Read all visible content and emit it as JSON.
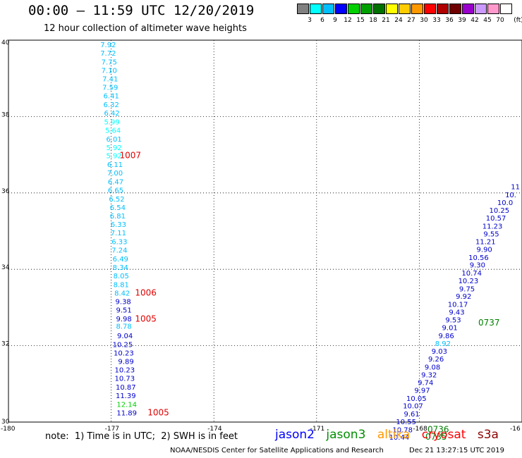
{
  "header": {
    "title": "00:00 – 11:59 UTC 12/20/2019",
    "subtitle": "12 hour collection of altimeter wave heights"
  },
  "colorbar": {
    "unit": "(ft)",
    "labels": [
      "3",
      "6",
      "9",
      "12",
      "15",
      "18",
      "21",
      "24",
      "27",
      "30",
      "33",
      "36",
      "39",
      "42",
      "45",
      "70"
    ],
    "colors": [
      "#808080",
      "#00ffff",
      "#00bfff",
      "#0000ff",
      "#00d000",
      "#00a000",
      "#007000",
      "#ffff00",
      "#ffcc00",
      "#ff9900",
      "#ff0000",
      "#b00000",
      "#700000",
      "#9900cc",
      "#cc99ff",
      "#ff99cc",
      "#ffffff"
    ]
  },
  "map": {
    "lat_labels": [
      "40",
      "38",
      "36",
      "34",
      "32",
      "30"
    ],
    "lon_labels": [
      "-180",
      "-177",
      "-174",
      "-171",
      "-168",
      "-16"
    ],
    "grid": "dotted"
  },
  "tracks": [
    {
      "name": "west-track",
      "points": [
        {
          "lon": -176.9,
          "lat": 39.89,
          "text": "7.92",
          "color": "#00bfff"
        },
        {
          "lon": -176.9,
          "lat": 39.67,
          "text": "7.72",
          "color": "#00bfff"
        },
        {
          "lon": -176.87,
          "lat": 39.44,
          "text": "7.75",
          "color": "#00bfff"
        },
        {
          "lon": -176.87,
          "lat": 39.22,
          "text": "7.10",
          "color": "#00bfff"
        },
        {
          "lon": -176.84,
          "lat": 38.99,
          "text": "7.41",
          "color": "#00bfff"
        },
        {
          "lon": -176.84,
          "lat": 38.77,
          "text": "7.59",
          "color": "#00bfff"
        },
        {
          "lon": -176.81,
          "lat": 38.55,
          "text": "6.41",
          "color": "#00bfff"
        },
        {
          "lon": -176.81,
          "lat": 38.32,
          "text": "6.32",
          "color": "#00bfff"
        },
        {
          "lon": -176.79,
          "lat": 38.1,
          "text": "6.42",
          "color": "#00bfff"
        },
        {
          "lon": -176.79,
          "lat": 37.87,
          "text": "5.99",
          "color": "#00ffff"
        },
        {
          "lon": -176.76,
          "lat": 37.65,
          "text": "5.64",
          "color": "#00ffff"
        },
        {
          "lon": -176.73,
          "lat": 37.42,
          "text": "6.01",
          "color": "#00bfff"
        },
        {
          "lon": -176.73,
          "lat": 37.2,
          "text": "5.92",
          "color": "#00ffff"
        },
        {
          "lon": -176.73,
          "lat": 36.98,
          "text": "5.92",
          "color": "#00ffff"
        },
        {
          "lon": -176.7,
          "lat": 36.75,
          "text": "6.11",
          "color": "#00bfff"
        },
        {
          "lon": -176.7,
          "lat": 36.53,
          "text": "7.00",
          "color": "#00bfff"
        },
        {
          "lon": -176.68,
          "lat": 36.3,
          "text": "6.47",
          "color": "#00bfff"
        },
        {
          "lon": -176.68,
          "lat": 36.08,
          "text": "6.65",
          "color": "#00bfff"
        },
        {
          "lon": -176.65,
          "lat": 35.85,
          "text": "6.52",
          "color": "#00bfff"
        },
        {
          "lon": -176.62,
          "lat": 35.63,
          "text": "6.54",
          "color": "#00bfff"
        },
        {
          "lon": -176.62,
          "lat": 35.41,
          "text": "6.81",
          "color": "#00bfff"
        },
        {
          "lon": -176.6,
          "lat": 35.18,
          "text": "6.33",
          "color": "#00bfff"
        },
        {
          "lon": -176.6,
          "lat": 34.96,
          "text": "7.11",
          "color": "#00bfff"
        },
        {
          "lon": -176.57,
          "lat": 34.73,
          "text": "6.33",
          "color": "#00bfff"
        },
        {
          "lon": -176.57,
          "lat": 34.51,
          "text": "7.24",
          "color": "#00bfff"
        },
        {
          "lon": -176.54,
          "lat": 34.28,
          "text": "6.49",
          "color": "#00bfff"
        },
        {
          "lon": -176.54,
          "lat": 34.06,
          "text": "8.34",
          "color": "#00bfff"
        },
        {
          "lon": -176.52,
          "lat": 33.84,
          "text": "8.05",
          "color": "#00bfff"
        },
        {
          "lon": -176.52,
          "lat": 33.61,
          "text": "8.81",
          "color": "#00bfff"
        },
        {
          "lon": -176.49,
          "lat": 33.39,
          "text": "8.42",
          "color": "#00bfff"
        },
        {
          "lon": -176.46,
          "lat": 33.16,
          "text": "9.38",
          "color": "#0000cc"
        },
        {
          "lon": -176.44,
          "lat": 32.94,
          "text": "9.51",
          "color": "#0000cc"
        },
        {
          "lon": -176.44,
          "lat": 32.71,
          "text": "9.98",
          "color": "#0000cc"
        },
        {
          "lon": -176.44,
          "lat": 32.52,
          "text": "8.78",
          "color": "#00bfff"
        },
        {
          "lon": -176.41,
          "lat": 32.27,
          "text": "9.04",
          "color": "#0000cc"
        },
        {
          "lon": -176.41,
          "lat": 32.04,
          "text": "10.25",
          "color": "#0000cc"
        },
        {
          "lon": -176.38,
          "lat": 31.82,
          "text": "10.23",
          "color": "#0000cc"
        },
        {
          "lon": -176.38,
          "lat": 31.6,
          "text": "9.89",
          "color": "#0000cc"
        },
        {
          "lon": -176.35,
          "lat": 31.37,
          "text": "10.23",
          "color": "#0000cc"
        },
        {
          "lon": -176.35,
          "lat": 31.15,
          "text": "10.73",
          "color": "#0000cc"
        },
        {
          "lon": -176.32,
          "lat": 30.92,
          "text": "10.87",
          "color": "#0000cc"
        },
        {
          "lon": -176.32,
          "lat": 30.7,
          "text": "11.39",
          "color": "#0000cc"
        },
        {
          "lon": -176.29,
          "lat": 30.47,
          "text": "12.14",
          "color": "#00d000"
        },
        {
          "lon": -176.29,
          "lat": 30.25,
          "text": "11.89",
          "color": "#0000cc"
        }
      ],
      "times": [
        {
          "lon": -176.92,
          "lat": 36.98,
          "text": "1007",
          "color": "#e00000"
        },
        {
          "lon": -176.47,
          "lat": 33.39,
          "text": "1006",
          "color": "#e00000"
        },
        {
          "lon": -176.47,
          "lat": 32.7,
          "text": "1005",
          "color": "#e00000"
        },
        {
          "lon": -176.1,
          "lat": 30.25,
          "text": "1005",
          "color": "#e00000"
        }
      ]
    },
    {
      "name": "east-track",
      "points": [
        {
          "lon": -165.5,
          "lat": 36.17,
          "text": "11",
          "color": "#0000cc"
        },
        {
          "lon": -165.5,
          "lat": 35.96,
          "text": "10.",
          "color": "#0000cc"
        },
        {
          "lon": -165.5,
          "lat": 35.76,
          "text": "10.0",
          "color": "#0000cc"
        },
        {
          "lon": -165.5,
          "lat": 35.55,
          "text": "10.25",
          "color": "#0000cc"
        },
        {
          "lon": -165.5,
          "lat": 35.35,
          "text": "10.57",
          "color": "#0000cc"
        },
        {
          "lon": -165.5,
          "lat": 35.14,
          "text": "11.23",
          "color": "#0000cc"
        },
        {
          "lon": -165.5,
          "lat": 34.94,
          "text": "9.55",
          "color": "#0000cc"
        },
        {
          "lon": -165.5,
          "lat": 34.73,
          "text": "11.21",
          "color": "#0000cc"
        },
        {
          "lon": -165.5,
          "lat": 34.53,
          "text": "9.90",
          "color": "#0000cc"
        },
        {
          "lon": -165.5,
          "lat": 34.32,
          "text": "10.56",
          "color": "#0000cc"
        },
        {
          "lon": -165.5,
          "lat": 34.12,
          "text": "9.30",
          "color": "#0000cc"
        },
        {
          "lon": -165.5,
          "lat": 33.91,
          "text": "10.74",
          "color": "#0000cc"
        },
        {
          "lon": -165.5,
          "lat": 33.71,
          "text": "10.23",
          "color": "#0000cc"
        },
        {
          "lon": -165.5,
          "lat": 33.5,
          "text": "9.75",
          "color": "#0000cc"
        },
        {
          "lon": -165.5,
          "lat": 33.3,
          "text": "9.92",
          "color": "#0000cc"
        },
        {
          "lon": -165.5,
          "lat": 33.09,
          "text": "10.17",
          "color": "#0000cc"
        },
        {
          "lon": -165.5,
          "lat": 32.89,
          "text": "9.43",
          "color": "#0000cc"
        },
        {
          "lon": -165.5,
          "lat": 32.68,
          "text": "9.53",
          "color": "#0000cc"
        },
        {
          "lon": -165.5,
          "lat": 32.48,
          "text": "9.01",
          "color": "#0000cc"
        },
        {
          "lon": -165.5,
          "lat": 32.27,
          "text": "9.86",
          "color": "#0000cc"
        },
        {
          "lon": -165.5,
          "lat": 32.07,
          "text": "8.92",
          "color": "#00bfff"
        },
        {
          "lon": -165.5,
          "lat": 31.86,
          "text": "9.03",
          "color": "#0000cc"
        },
        {
          "lon": -165.5,
          "lat": 31.66,
          "text": "9.26",
          "color": "#0000cc"
        },
        {
          "lon": -165.5,
          "lat": 31.45,
          "text": "9.08",
          "color": "#0000cc"
        },
        {
          "lon": -165.5,
          "lat": 31.25,
          "text": "9.32",
          "color": "#0000cc"
        },
        {
          "lon": -165.5,
          "lat": 31.04,
          "text": "9.74",
          "color": "#0000cc"
        },
        {
          "lon": -165.5,
          "lat": 30.84,
          "text": "9.97",
          "color": "#0000cc"
        },
        {
          "lon": -165.5,
          "lat": 30.63,
          "text": "10.05",
          "color": "#0000cc"
        },
        {
          "lon": -165.5,
          "lat": 30.43,
          "text": "10.07",
          "color": "#0000cc"
        },
        {
          "lon": -165.5,
          "lat": 30.22,
          "text": "9.61",
          "color": "#0000cc"
        },
        {
          "lon": -165.5,
          "lat": 30.02,
          "text": "10.55",
          "color": "#0000cc"
        },
        {
          "lon": -165.5,
          "lat": 29.81,
          "text": "10.78",
          "color": "#0000cc"
        },
        {
          "lon": -165.5,
          "lat": 29.61,
          "text": "10.44",
          "color": "#0000cc"
        }
      ],
      "times": [
        {
          "lon": -165.5,
          "lat": 32.6,
          "text": "0737",
          "color": "#008000"
        },
        {
          "lon": -165.5,
          "lat": 29.81,
          "text": "0736",
          "color": "#008000"
        },
        {
          "lon": -165.5,
          "lat": 29.61,
          "text": "0735",
          "color": "#008000"
        }
      ]
    }
  ],
  "note": "note:  1) Time is in UTC;  2) SWH is in feet",
  "legend": [
    {
      "label": "jason2",
      "color": "#0000ff"
    },
    {
      "label": "jason3",
      "color": "#009000"
    },
    {
      "label": "altika",
      "color": "#ff9900"
    },
    {
      "label": "cryosat",
      "color": "#ff0000"
    },
    {
      "label": "s3a",
      "color": "#8b0000"
    }
  ],
  "footer": {
    "credit": "NOAA/NESDIS Center for Satellite Applications and Research",
    "timestamp": "Dec 21 13:27:15 UTC 2019"
  }
}
